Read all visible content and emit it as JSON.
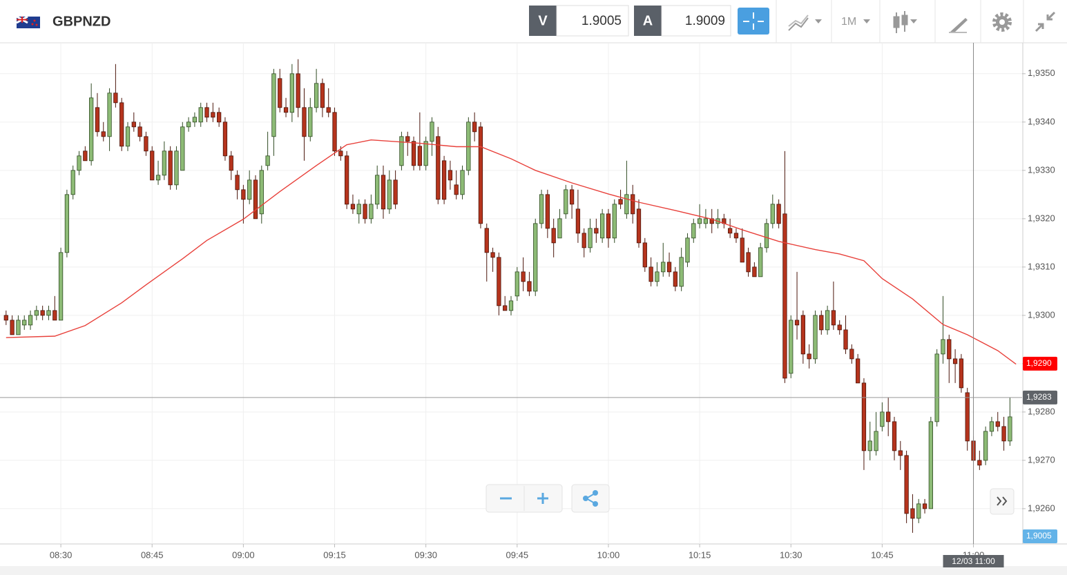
{
  "header": {
    "symbol": "GBPNZD",
    "sell_label": "V",
    "sell": "1.9005",
    "buy_label": "A",
    "buy": "1.9009",
    "timeframe": "1M"
  },
  "chart_data": {
    "type": "candlestick",
    "x": [
      "08:21",
      "08:22",
      "08:23",
      "08:24",
      "08:25",
      "08:26",
      "08:27",
      "08:28",
      "08:29",
      "08:30",
      "08:31",
      "08:32",
      "08:33",
      "08:34",
      "08:35",
      "08:36",
      "08:37",
      "08:38",
      "08:39",
      "08:40",
      "08:41",
      "08:42",
      "08:43",
      "08:44",
      "08:45",
      "08:46",
      "08:47",
      "08:48",
      "08:49",
      "08:50",
      "08:51",
      "08:52",
      "08:53",
      "08:54",
      "08:55",
      "08:56",
      "08:57",
      "08:58",
      "08:59",
      "09:00",
      "09:01",
      "09:02",
      "09:03",
      "09:04",
      "09:05",
      "09:06",
      "09:07",
      "09:08",
      "09:09",
      "09:10",
      "09:11",
      "09:12",
      "09:13",
      "09:14",
      "09:15",
      "09:16",
      "09:17",
      "09:18",
      "09:19",
      "09:20",
      "09:21",
      "09:22",
      "09:23",
      "09:24",
      "09:25",
      "09:26",
      "09:27",
      "09:28",
      "09:29",
      "09:30",
      "09:31",
      "09:32",
      "09:33",
      "09:34",
      "09:35",
      "09:36",
      "09:37",
      "09:38",
      "09:39",
      "09:40",
      "09:41",
      "09:42",
      "09:43",
      "09:44",
      "09:45",
      "09:46",
      "09:47",
      "09:48",
      "09:49",
      "09:50",
      "09:51",
      "09:52",
      "09:53",
      "09:54",
      "09:55",
      "09:56",
      "09:57",
      "09:58",
      "09:59",
      "10:00",
      "10:01",
      "10:02",
      "10:03",
      "10:04",
      "10:05",
      "10:06",
      "10:07",
      "10:08",
      "10:09",
      "10:10",
      "10:11",
      "10:12",
      "10:13",
      "10:14",
      "10:15",
      "10:16",
      "10:17",
      "10:18",
      "10:19",
      "10:20",
      "10:21",
      "10:22",
      "10:23",
      "10:24",
      "10:25",
      "10:26",
      "10:27",
      "10:28",
      "10:29",
      "10:30",
      "10:31",
      "10:32",
      "10:33",
      "10:34",
      "10:35",
      "10:36",
      "10:37",
      "10:38",
      "10:39",
      "10:40",
      "10:41",
      "10:42",
      "10:43",
      "10:44",
      "10:45",
      "10:46",
      "10:47",
      "10:48",
      "10:49",
      "10:50",
      "10:51",
      "10:52",
      "10:53",
      "10:54",
      "10:55",
      "10:56",
      "10:57",
      "10:58",
      "10:59",
      "11:00",
      "11:01",
      "11:02",
      "11:03",
      "11:04",
      "11:05",
      "11:06"
    ],
    "candles": [
      [
        1.93,
        1.9301,
        1.9298,
        1.9299
      ],
      [
        1.9299,
        1.93,
        1.9296,
        1.9296
      ],
      [
        1.9296,
        1.93,
        1.9296,
        1.9299
      ],
      [
        1.9298,
        1.93,
        1.9297,
        1.9299
      ],
      [
        1.9298,
        1.9301,
        1.9297,
        1.93
      ],
      [
        1.93,
        1.9302,
        1.9299,
        1.9301
      ],
      [
        1.9301,
        1.9302,
        1.9299,
        1.93
      ],
      [
        1.93,
        1.9302,
        1.9299,
        1.9301
      ],
      [
        1.9301,
        1.9304,
        1.9299,
        1.9299
      ],
      [
        1.9299,
        1.9314,
        1.9299,
        1.9313
      ],
      [
        1.9313,
        1.9326,
        1.9312,
        1.9325
      ],
      [
        1.9325,
        1.9331,
        1.9324,
        1.933
      ],
      [
        1.933,
        1.9334,
        1.9329,
        1.9333
      ],
      [
        1.9334,
        1.9335,
        1.9332,
        1.9332
      ],
      [
        1.9332,
        1.9348,
        1.9331,
        1.9345
      ],
      [
        1.9343,
        1.9346,
        1.9337,
        1.9338
      ],
      [
        1.9338,
        1.934,
        1.9336,
        1.9337
      ],
      [
        1.9337,
        1.9347,
        1.9334,
        1.9346
      ],
      [
        1.9346,
        1.9352,
        1.9343,
        1.9344
      ],
      [
        1.9344,
        1.9345,
        1.9334,
        1.9335
      ],
      [
        1.9335,
        1.934,
        1.9334,
        1.9339
      ],
      [
        1.934,
        1.9342,
        1.9338,
        1.9339
      ],
      [
        1.9339,
        1.934,
        1.9336,
        1.9337
      ],
      [
        1.9337,
        1.9338,
        1.9333,
        1.9334
      ],
      [
        1.9334,
        1.9335,
        1.9328,
        1.9328
      ],
      [
        1.9328,
        1.9332,
        1.9327,
        1.9329
      ],
      [
        1.9329,
        1.9336,
        1.9328,
        1.9334
      ],
      [
        1.9334,
        1.9335,
        1.9326,
        1.9327
      ],
      [
        1.9327,
        1.9335,
        1.9326,
        1.9334
      ],
      [
        1.933,
        1.934,
        1.933,
        1.9339
      ],
      [
        1.9339,
        1.9341,
        1.9338,
        1.934
      ],
      [
        1.934,
        1.9342,
        1.9339,
        1.9341
      ],
      [
        1.934,
        1.9344,
        1.9339,
        1.9343
      ],
      [
        1.9343,
        1.9344,
        1.934,
        1.9341
      ],
      [
        1.9342,
        1.9344,
        1.934,
        1.9341
      ],
      [
        1.9342,
        1.9343,
        1.9339,
        1.934
      ],
      [
        1.934,
        1.9341,
        1.9332,
        1.9333
      ],
      [
        1.9333,
        1.9334,
        1.9328,
        1.933
      ],
      [
        1.9329,
        1.933,
        1.9324,
        1.9326
      ],
      [
        1.9326,
        1.9327,
        1.9319,
        1.9324
      ],
      [
        1.9324,
        1.933,
        1.9323,
        1.9328
      ],
      [
        1.9328,
        1.9329,
        1.932,
        1.932
      ],
      [
        1.9321,
        1.9331,
        1.9319,
        1.933
      ],
      [
        1.9331,
        1.9338,
        1.933,
        1.9333
      ],
      [
        1.9337,
        1.9351,
        1.9333,
        1.935
      ],
      [
        1.9349,
        1.9351,
        1.9342,
        1.9343
      ],
      [
        1.9343,
        1.9345,
        1.9341,
        1.9342
      ],
      [
        1.9342,
        1.9352,
        1.934,
        1.935
      ],
      [
        1.935,
        1.9353,
        1.9341,
        1.9343
      ],
      [
        1.9343,
        1.9347,
        1.9332,
        1.9337
      ],
      [
        1.9337,
        1.9345,
        1.9336,
        1.9343
      ],
      [
        1.9343,
        1.9351,
        1.9342,
        1.9348
      ],
      [
        1.9348,
        1.9349,
        1.9341,
        1.9343
      ],
      [
        1.9343,
        1.9347,
        1.9341,
        1.9342
      ],
      [
        1.9342,
        1.9343,
        1.9333,
        1.9334
      ],
      [
        1.9334,
        1.9335,
        1.9332,
        1.9333
      ],
      [
        1.9333,
        1.9334,
        1.9322,
        1.9323
      ],
      [
        1.9323,
        1.9325,
        1.9321,
        1.9322
      ],
      [
        1.9321,
        1.9324,
        1.9319,
        1.9323
      ],
      [
        1.9323,
        1.9324,
        1.9319,
        1.932
      ],
      [
        1.932,
        1.9325,
        1.9319,
        1.9323
      ],
      [
        1.9323,
        1.9331,
        1.9322,
        1.9329
      ],
      [
        1.9329,
        1.9331,
        1.932,
        1.9322
      ],
      [
        1.9322,
        1.933,
        1.9321,
        1.9328
      ],
      [
        1.9328,
        1.933,
        1.9322,
        1.9323
      ],
      [
        1.9331,
        1.9338,
        1.933,
        1.9337
      ],
      [
        1.9337,
        1.9338,
        1.9333,
        1.9336
      ],
      [
        1.9336,
        1.9337,
        1.933,
        1.9331
      ],
      [
        1.9335,
        1.9342,
        1.933,
        1.9331
      ],
      [
        1.9331,
        1.9337,
        1.933,
        1.9336
      ],
      [
        1.9336,
        1.9341,
        1.9333,
        1.934
      ],
      [
        1.9337,
        1.9339,
        1.9323,
        1.9324
      ],
      [
        1.9332,
        1.9333,
        1.9323,
        1.9324
      ],
      [
        1.933,
        1.9332,
        1.9326,
        1.9328
      ],
      [
        1.9327,
        1.933,
        1.9324,
        1.9325
      ],
      [
        1.9325,
        1.9331,
        1.9324,
        1.933
      ],
      [
        1.933,
        1.9341,
        1.9329,
        1.934
      ],
      [
        1.934,
        1.9342,
        1.9336,
        1.9338
      ],
      [
        1.9339,
        1.934,
        1.9318,
        1.9319
      ],
      [
        1.9318,
        1.9319,
        1.9307,
        1.9313
      ],
      [
        1.9313,
        1.9314,
        1.9309,
        1.9312
      ],
      [
        1.9312,
        1.9313,
        1.93,
        1.9302
      ],
      [
        1.9302,
        1.9304,
        1.9301,
        1.9301
      ],
      [
        1.9301,
        1.9304,
        1.93,
        1.9303
      ],
      [
        1.9304,
        1.931,
        1.9303,
        1.9309
      ],
      [
        1.9309,
        1.9312,
        1.9305,
        1.9307
      ],
      [
        1.9307,
        1.9309,
        1.9304,
        1.9305
      ],
      [
        1.9305,
        1.932,
        1.9304,
        1.9319
      ],
      [
        1.9319,
        1.9326,
        1.9318,
        1.9325
      ],
      [
        1.9325,
        1.9326,
        1.9316,
        1.9318
      ],
      [
        1.9318,
        1.932,
        1.9312,
        1.9315
      ],
      [
        1.9316,
        1.9322,
        1.9316,
        1.932
      ],
      [
        1.9321,
        1.9327,
        1.932,
        1.9326
      ],
      [
        1.9326,
        1.9327,
        1.932,
        1.9323
      ],
      [
        1.9322,
        1.9326,
        1.9315,
        1.9317
      ],
      [
        1.9317,
        1.9318,
        1.9312,
        1.9314
      ],
      [
        1.9314,
        1.932,
        1.9313,
        1.9318
      ],
      [
        1.9318,
        1.932,
        1.9315,
        1.9317
      ],
      [
        1.9316,
        1.9322,
        1.9315,
        1.9321
      ],
      [
        1.9321,
        1.9322,
        1.9314,
        1.9316
      ],
      [
        1.9316,
        1.9324,
        1.9315,
        1.9323
      ],
      [
        1.9324,
        1.9326,
        1.9322,
        1.9323
      ],
      [
        1.9321,
        1.9332,
        1.932,
        1.9325
      ],
      [
        1.9325,
        1.9327,
        1.9319,
        1.9321
      ],
      [
        1.9322,
        1.9324,
        1.9314,
        1.9315
      ],
      [
        1.9315,
        1.9316,
        1.9309,
        1.931
      ],
      [
        1.931,
        1.9312,
        1.9306,
        1.9307
      ],
      [
        1.9307,
        1.9311,
        1.9306,
        1.9309
      ],
      [
        1.9309,
        1.9315,
        1.9308,
        1.9311
      ],
      [
        1.9311,
        1.9313,
        1.9308,
        1.9309
      ],
      [
        1.9309,
        1.931,
        1.9305,
        1.9306
      ],
      [
        1.9306,
        1.9314,
        1.9305,
        1.9312
      ],
      [
        1.9311,
        1.9317,
        1.931,
        1.9316
      ],
      [
        1.9316,
        1.932,
        1.9315,
        1.9319
      ],
      [
        1.9319,
        1.9323,
        1.9318,
        1.932
      ],
      [
        1.9319,
        1.9322,
        1.9318,
        1.932
      ],
      [
        1.932,
        1.9322,
        1.9317,
        1.9319
      ],
      [
        1.9319,
        1.9322,
        1.9318,
        1.932
      ],
      [
        1.932,
        1.9321,
        1.9318,
        1.9319
      ],
      [
        1.9318,
        1.932,
        1.9316,
        1.9317
      ],
      [
        1.9317,
        1.9318,
        1.9315,
        1.9316
      ],
      [
        1.9316,
        1.9318,
        1.9311,
        1.9311
      ],
      [
        1.9313,
        1.9314,
        1.9308,
        1.9309
      ],
      [
        1.931,
        1.9311,
        1.9308,
        1.9308
      ],
      [
        1.9308,
        1.9315,
        1.9308,
        1.9314
      ],
      [
        1.9314,
        1.932,
        1.9313,
        1.9319
      ],
      [
        1.9319,
        1.9325,
        1.9318,
        1.9323
      ],
      [
        1.9323,
        1.9324,
        1.9318,
        1.9319
      ],
      [
        1.9321,
        1.9334,
        1.9286,
        1.9287
      ],
      [
        1.9288,
        1.93,
        1.9287,
        1.9299
      ],
      [
        1.9299,
        1.9309,
        1.9295,
        1.9298
      ],
      [
        1.93,
        1.9301,
        1.929,
        1.9292
      ],
      [
        1.9292,
        1.9294,
        1.9289,
        1.9291
      ],
      [
        1.9291,
        1.9301,
        1.929,
        1.93
      ],
      [
        1.93,
        1.9301,
        1.9296,
        1.9297
      ],
      [
        1.9297,
        1.9302,
        1.9296,
        1.9301
      ],
      [
        1.9301,
        1.9307,
        1.9297,
        1.9298
      ],
      [
        1.9298,
        1.9299,
        1.9296,
        1.9297
      ],
      [
        1.9297,
        1.93,
        1.9292,
        1.9293
      ],
      [
        1.9293,
        1.9294,
        1.929,
        1.9291
      ],
      [
        1.9291,
        1.9292,
        1.9286,
        1.9286
      ],
      [
        1.9286,
        1.9287,
        1.9268,
        1.9272
      ],
      [
        1.9272,
        1.9278,
        1.927,
        1.9274
      ],
      [
        1.9272,
        1.928,
        1.9271,
        1.9276
      ],
      [
        1.9277,
        1.9282,
        1.9276,
        1.928
      ],
      [
        1.928,
        1.9283,
        1.9275,
        1.9278
      ],
      [
        1.9278,
        1.9279,
        1.927,
        1.9272
      ],
      [
        1.9272,
        1.9274,
        1.9268,
        1.9271
      ],
      [
        1.9271,
        1.9272,
        1.9257,
        1.9259
      ],
      [
        1.926,
        1.9263,
        1.9255,
        1.9258
      ],
      [
        1.9258,
        1.9262,
        1.9257,
        1.9261
      ],
      [
        1.9261,
        1.9262,
        1.9259,
        1.926
      ],
      [
        1.926,
        1.9279,
        1.926,
        1.9278
      ],
      [
        1.9278,
        1.9293,
        1.9277,
        1.9292
      ],
      [
        1.9292,
        1.9304,
        1.929,
        1.9295
      ],
      [
        1.9295,
        1.9296,
        1.9286,
        1.9291
      ],
      [
        1.9291,
        1.9293,
        1.9286,
        1.929
      ],
      [
        1.9291,
        1.9292,
        1.9284,
        1.9285
      ],
      [
        1.9284,
        1.9285,
        1.9272,
        1.9274
      ],
      [
        1.9274,
        1.9275,
        1.9266,
        1.927
      ],
      [
        1.927,
        1.9272,
        1.9268,
        1.9269
      ],
      [
        1.927,
        1.9277,
        1.9269,
        1.9276
      ],
      [
        1.9276,
        1.9279,
        1.9275,
        1.9278
      ],
      [
        1.9278,
        1.928,
        1.9276,
        1.9277
      ],
      [
        1.9277,
        1.9279,
        1.9272,
        1.9274
      ],
      [
        1.9274,
        1.9283,
        1.9273,
        1.9279
      ]
    ],
    "up_color": "#8dbb76",
    "down_color": "#b5341d",
    "ma": {
      "color": "#e8403a",
      "x": [
        "08:21",
        "08:29",
        "08:34",
        "08:40",
        "08:44",
        "08:50",
        "08:54",
        "09:00",
        "09:06",
        "09:12",
        "09:17",
        "09:21",
        "09:29",
        "09:35",
        "09:39",
        "09:44",
        "09:48",
        "09:54",
        "10:00",
        "10:05",
        "10:11",
        "10:17",
        "10:22",
        "10:28",
        "10:34",
        "10:38",
        "10:42",
        "10:45",
        "10:50",
        "10:55",
        "10:59",
        "11:04",
        "11:07"
      ],
      "values": [
        1.92954,
        1.92957,
        1.92979,
        1.93026,
        1.93063,
        1.93117,
        1.93155,
        1.93199,
        1.93256,
        1.9331,
        1.93353,
        1.93363,
        1.93356,
        1.93349,
        1.93349,
        1.93324,
        1.933,
        1.93274,
        1.93251,
        1.93234,
        1.93217,
        1.93199,
        1.93177,
        1.93153,
        1.93136,
        1.93127,
        1.93113,
        1.93076,
        1.93034,
        1.92981,
        1.9296,
        1.92927,
        1.92899
      ]
    },
    "xlim": [
      "08:20",
      "11:08"
    ],
    "xticks": [
      "08:30",
      "08:45",
      "09:00",
      "09:15",
      "09:30",
      "09:45",
      "10:00",
      "10:15",
      "10:30",
      "10:45",
      "11:00"
    ],
    "ylim": [
      1.92527,
      1.93564
    ],
    "yticks": [
      {
        "value": 1.935,
        "label": "1,9350"
      },
      {
        "value": 1.934,
        "label": "1,9340"
      },
      {
        "value": 1.933,
        "label": "1,9330"
      },
      {
        "value": 1.932,
        "label": "1,9320"
      },
      {
        "value": 1.931,
        "label": "1,9310"
      },
      {
        "value": 1.93,
        "label": "1,9300"
      },
      {
        "value": 1.929,
        "label": "1,9290"
      },
      {
        "value": 1.928,
        "label": "1,9280"
      },
      {
        "value": 1.927,
        "label": "1,9270"
      },
      {
        "value": 1.926,
        "label": "1,9260"
      }
    ],
    "grid": true,
    "price_tags": [
      {
        "value": 1.929,
        "label": "1,9290",
        "color": "#ff0000"
      },
      {
        "value": 1.9283,
        "label": "1,9283",
        "color": "#5f6368",
        "line": true
      },
      {
        "value": 1.9005,
        "label": "1,9005",
        "color": "#63b3e8"
      }
    ],
    "crosshair": {
      "x": "11:00",
      "label": "12/03 11:00"
    }
  }
}
